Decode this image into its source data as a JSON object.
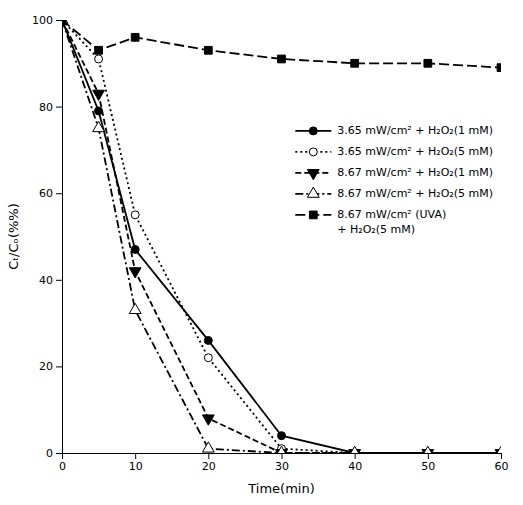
{
  "chart_data": {
    "type": "line",
    "xlabel": "Time(min)",
    "ylabel": "Cₜ/Cₒ(%%)",
    "x": [
      0,
      5,
      10,
      20,
      30,
      40,
      50,
      60
    ],
    "series": [
      {
        "name": "3.65 mW/cm² + H₂O₂(1 mM)",
        "color": "black",
        "marker": "circle",
        "line_style": "solid",
        "values": [
          100,
          79,
          47,
          26,
          4,
          0,
          0,
          0
        ]
      },
      {
        "name": "3.65 mW/cm² + H₂O₂(5 mM)",
        "color": "black",
        "marker": "circle-open",
        "line_style": "dotted",
        "values": [
          100,
          91,
          55,
          22,
          1,
          0,
          0,
          0
        ]
      },
      {
        "name": "8.67 mW/cm² + H₂O₂(1 mM)",
        "color": "black",
        "marker": "triangle-down",
        "line_style": "dashed",
        "values": [
          100,
          83,
          42,
          8,
          0,
          0,
          0,
          0
        ]
      },
      {
        "name": "8.67 mW/cm² + H₂O₂(5 mM)",
        "color": "black",
        "marker": "triangle-up-open",
        "line_style": "dashdot",
        "values": [
          100,
          75,
          33,
          1,
          0,
          0,
          0,
          0
        ]
      },
      {
        "name": "8.67 mW/cm² (UVA)\n+ H₂O₂(5 mM)",
        "color": "black",
        "marker": "square",
        "line_style": "longdash",
        "values": [
          100,
          93,
          96,
          93,
          91,
          90,
          90,
          89
        ]
      }
    ],
    "xlim": [
      0,
      60
    ],
    "ylim": [
      0,
      100
    ],
    "xticks": [
      0,
      10,
      20,
      30,
      40,
      50,
      60
    ],
    "yticks": [
      0,
      20,
      40,
      60,
      80,
      100
    ],
    "grid": false,
    "legend": "upper right"
  }
}
